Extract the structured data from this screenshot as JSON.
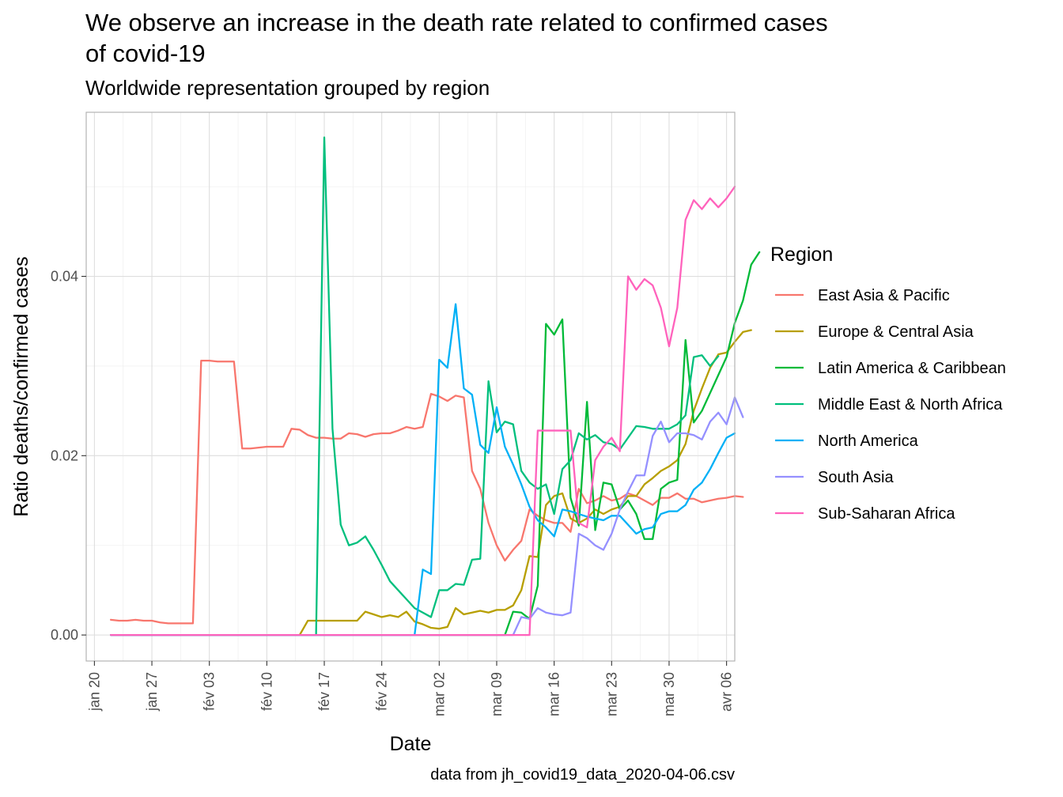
{
  "chart_data": {
    "type": "line",
    "title": "We observe an increase in the death rate related to confirmed cases of covid-19",
    "title_lines": [
      "We observe an increase in the death rate related to confirmed cases",
      "of covid-19"
    ],
    "subtitle": "Worldwide representation grouped by region",
    "xlabel": "Date",
    "ylabel": "Ratio deaths/confirmed cases",
    "caption": "data from jh_covid19_data_2020-04-06.csv",
    "legend_title": "Region",
    "legend_position": "right",
    "grid": true,
    "xlim": [
      "2020-01-19",
      "2020-04-07"
    ],
    "ylim": [
      -0.0029,
      0.0583
    ],
    "x_ticks": [
      {
        "date": "2020-01-20",
        "label": "jan 20"
      },
      {
        "date": "2020-01-27",
        "label": "jan 27"
      },
      {
        "date": "2020-02-03",
        "label": "fév 03"
      },
      {
        "date": "2020-02-10",
        "label": "fév 10"
      },
      {
        "date": "2020-02-17",
        "label": "fév 17"
      },
      {
        "date": "2020-02-24",
        "label": "fév 24"
      },
      {
        "date": "2020-03-02",
        "label": "mar 02"
      },
      {
        "date": "2020-03-09",
        "label": "mar 09"
      },
      {
        "date": "2020-03-16",
        "label": "mar 16"
      },
      {
        "date": "2020-03-23",
        "label": "mar 23"
      },
      {
        "date": "2020-03-30",
        "label": "mar 30"
      },
      {
        "date": "2020-04-06",
        "label": "avr 06"
      }
    ],
    "y_ticks": [
      {
        "value": 0.0,
        "label": "0.00"
      },
      {
        "value": 0.02,
        "label": "0.02"
      },
      {
        "value": 0.04,
        "label": "0.04"
      }
    ],
    "y_minor_ticks": [
      0.01,
      0.03,
      0.05
    ],
    "start_date": "2020-01-22",
    "series": [
      {
        "name": "East Asia & Pacific",
        "color": "#F8766D",
        "values": [
          0.0017,
          0.0016,
          0.0016,
          0.0017,
          0.0016,
          0.0016,
          0.0014,
          0.0013,
          0.0013,
          0.0013,
          0.0013,
          0.0306,
          0.0306,
          0.0305,
          0.0305,
          0.0305,
          0.0208,
          0.0208,
          0.0209,
          0.021,
          0.021,
          0.021,
          0.023,
          0.0229,
          0.0223,
          0.022,
          0.022,
          0.0219,
          0.0219,
          0.0225,
          0.0224,
          0.0221,
          0.0224,
          0.0225,
          0.0225,
          0.0228,
          0.0232,
          0.023,
          0.0232,
          0.0269,
          0.0266,
          0.0261,
          0.0267,
          0.0265,
          0.0183,
          0.0163,
          0.0125,
          0.01,
          0.0083,
          0.0095,
          0.0105,
          0.014,
          0.0133,
          0.0128,
          0.0125,
          0.0125,
          0.0115,
          0.0163,
          0.0147,
          0.015,
          0.0155,
          0.015,
          0.0152,
          0.0158,
          0.0155,
          0.015,
          0.0145,
          0.0153,
          0.0153,
          0.0158,
          0.0152,
          0.0152,
          0.0148,
          0.015,
          0.0152,
          0.0153,
          0.0155,
          0.0154
        ]
      },
      {
        "name": "Europe & Central Asia",
        "color": "#B79F00",
        "values": [
          0,
          0,
          0,
          0,
          0,
          0,
          0,
          0,
          0,
          0,
          0,
          0,
          0,
          0,
          0,
          0,
          0,
          0,
          0,
          0,
          0,
          0,
          0,
          0,
          0.0016,
          0.0016,
          0.0016,
          0.0016,
          0.0016,
          0.0016,
          0.0016,
          0.0026,
          0.0023,
          0.002,
          0.0022,
          0.002,
          0.0026,
          0.0015,
          0.0012,
          0.0008,
          0.0007,
          0.0009,
          0.003,
          0.0023,
          0.0025,
          0.0027,
          0.0025,
          0.0028,
          0.0028,
          0.0033,
          0.005,
          0.0088,
          0.0087,
          0.0145,
          0.0155,
          0.0158,
          0.013,
          0.0125,
          0.013,
          0.014,
          0.0135,
          0.014,
          0.0143,
          0.0155,
          0.0155,
          0.0168,
          0.0175,
          0.0183,
          0.0188,
          0.0195,
          0.0213,
          0.025,
          0.0275,
          0.0298,
          0.0313,
          0.0315,
          0.0327,
          0.0338,
          0.034
        ]
      },
      {
        "name": "Latin America & Caribbean",
        "color": "#00BA38",
        "values": [
          0,
          0,
          0,
          0,
          0,
          0,
          0,
          0,
          0,
          0,
          0,
          0,
          0,
          0,
          0,
          0,
          0,
          0,
          0,
          0,
          0,
          0,
          0,
          0,
          0,
          0,
          0,
          0,
          0,
          0,
          0,
          0,
          0,
          0,
          0,
          0,
          0,
          0,
          0,
          0,
          0,
          0,
          0,
          0,
          0,
          0,
          0,
          0,
          0,
          0.0026,
          0.0025,
          0.0018,
          0.0055,
          0.0347,
          0.0335,
          0.0352,
          0.0153,
          0.0122,
          0.026,
          0.0117,
          0.017,
          0.0168,
          0.014,
          0.015,
          0.0135,
          0.0107,
          0.0107,
          0.0163,
          0.017,
          0.0173,
          0.0329,
          0.0237,
          0.025,
          0.027,
          0.029,
          0.031,
          0.0348,
          0.0373,
          0.0413,
          0.0427
        ]
      },
      {
        "name": "Middle East & North Africa",
        "color": "#00BF7D",
        "values": [
          0,
          0,
          0,
          0,
          0,
          0,
          0,
          0,
          0,
          0,
          0,
          0,
          0,
          0,
          0,
          0,
          0,
          0,
          0,
          0,
          0,
          0,
          0,
          0,
          0,
          0,
          0.0555,
          0.023,
          0.0123,
          0.01,
          0.0103,
          0.011,
          0.0095,
          0.0078,
          0.006,
          0.005,
          0.004,
          0.003,
          0.0025,
          0.002,
          0.005,
          0.005,
          0.0057,
          0.0056,
          0.0084,
          0.0085,
          0.0283,
          0.0226,
          0.0238,
          0.0235,
          0.0183,
          0.017,
          0.0163,
          0.0168,
          0.0135,
          0.0185,
          0.0195,
          0.0225,
          0.0218,
          0.0223,
          0.0215,
          0.0213,
          0.0207,
          0.022,
          0.0233,
          0.0232,
          0.023,
          0.023,
          0.023,
          0.0235,
          0.0245,
          0.031,
          0.0312,
          0.03,
          0.0311
        ]
      },
      {
        "name": "North America",
        "color": "#00B0F6",
        "values": [
          0,
          0,
          0,
          0,
          0,
          0,
          0,
          0,
          0,
          0,
          0,
          0,
          0,
          0,
          0,
          0,
          0,
          0,
          0,
          0,
          0,
          0,
          0,
          0,
          0,
          0,
          0,
          0,
          0,
          0,
          0,
          0,
          0,
          0,
          0,
          0,
          0,
          0,
          0.0073,
          0.0068,
          0.0307,
          0.0298,
          0.0369,
          0.0275,
          0.0268,
          0.0212,
          0.0203,
          0.0254,
          0.021,
          0.019,
          0.0168,
          0.0143,
          0.0128,
          0.012,
          0.011,
          0.014,
          0.0138,
          0.0135,
          0.0132,
          0.013,
          0.0128,
          0.0133,
          0.0133,
          0.0123,
          0.0113,
          0.0118,
          0.012,
          0.0135,
          0.0138,
          0.0138,
          0.0145,
          0.0162,
          0.017,
          0.0185,
          0.0203,
          0.022,
          0.0225
        ]
      },
      {
        "name": "South Asia",
        "color": "#9590FF",
        "values": [
          0,
          0,
          0,
          0,
          0,
          0,
          0,
          0,
          0,
          0,
          0,
          0,
          0,
          0,
          0,
          0,
          0,
          0,
          0,
          0,
          0,
          0,
          0,
          0,
          0,
          0,
          0,
          0,
          0,
          0,
          0,
          0,
          0,
          0,
          0,
          0,
          0,
          0,
          0,
          0,
          0,
          0,
          0,
          0,
          0,
          0,
          0,
          0,
          0,
          0,
          0.002,
          0.0018,
          0.003,
          0.0025,
          0.0023,
          0.0022,
          0.0025,
          0.0113,
          0.0108,
          0.01,
          0.0095,
          0.0113,
          0.014,
          0.016,
          0.0178,
          0.0178,
          0.0222,
          0.0238,
          0.0215,
          0.0225,
          0.0225,
          0.0223,
          0.0218,
          0.0238,
          0.0248,
          0.0235,
          0.0265,
          0.0243
        ]
      },
      {
        "name": "Sub-Saharan Africa",
        "color": "#FF62BC",
        "values": [
          0,
          0,
          0,
          0,
          0,
          0,
          0,
          0,
          0,
          0,
          0,
          0,
          0,
          0,
          0,
          0,
          0,
          0,
          0,
          0,
          0,
          0,
          0,
          0,
          0,
          0,
          0,
          0,
          0,
          0,
          0,
          0,
          0,
          0,
          0,
          0,
          0,
          0,
          0,
          0,
          0,
          0,
          0,
          0,
          0,
          0,
          0,
          0,
          0,
          0,
          0,
          0,
          0.0228,
          0.0228,
          0.0228,
          0.0228,
          0.0228,
          0.0125,
          0.012,
          0.0195,
          0.021,
          0.022,
          0.0205,
          0.04,
          0.0385,
          0.0397,
          0.039,
          0.0365,
          0.0322,
          0.0365,
          0.0463,
          0.0485,
          0.0475,
          0.0487,
          0.0477,
          0.0487,
          0.05
        ]
      }
    ]
  }
}
